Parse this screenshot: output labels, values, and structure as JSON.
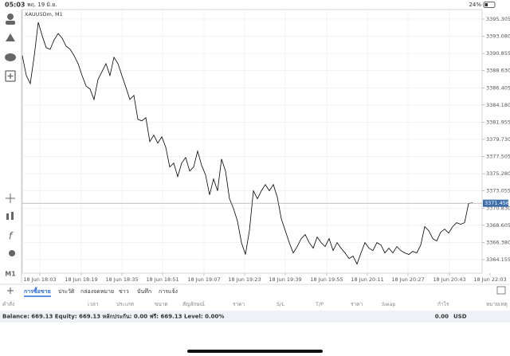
{
  "status": {
    "time": "05:03",
    "date": "พฤ. 19 มิ.ย.",
    "battery": "24%"
  },
  "toolbar": {
    "timeframe": "M1"
  },
  "chart_data": {
    "type": "line",
    "title": "XAUUSDm, M1",
    "color": "#000000",
    "values": [
      3390.57,
      3387.99,
      3386.96,
      3390.57,
      3394.89,
      3393.14,
      3391.6,
      3391.39,
      3392.63,
      3393.45,
      3392.83,
      3391.8,
      3391.39,
      3390.57,
      3389.54,
      3387.99,
      3386.65,
      3386.24,
      3384.9,
      3387.48,
      3388.51,
      3389.54,
      3387.99,
      3390.36,
      3389.54,
      3387.99,
      3386.45,
      3384.9,
      3385.42,
      3382.33,
      3382.12,
      3382.53,
      3379.44,
      3380.27,
      3379.24,
      3380.06,
      3378.72,
      3376.15,
      3376.66,
      3374.91,
      3376.66,
      3377.38,
      3375.63,
      3376.15,
      3378.21,
      3376.35,
      3375.12,
      3372.54,
      3374.6,
      3373.06,
      3377.18,
      3375.63,
      3372.03,
      3370.79,
      3369.14,
      3366.36,
      3364.82,
      3367.91,
      3373.06,
      3372.03,
      3373.06,
      3373.88,
      3373.06,
      3373.88,
      3372.23,
      3369.45,
      3367.91,
      3366.36,
      3365.02,
      3365.85,
      3366.88,
      3367.39,
      3366.36,
      3365.64,
      3367.08,
      3366.36,
      3365.85,
      3366.88,
      3365.33,
      3366.36,
      3365.64,
      3365.02,
      3364.3,
      3364.61,
      3363.58,
      3365.02,
      3366.36,
      3365.64,
      3365.33,
      3366.36,
      3366.05,
      3365.02,
      3365.64,
      3365.02,
      3365.85,
      3365.33,
      3365.02,
      3364.82,
      3365.23,
      3365.02,
      3366.05,
      3368.42,
      3367.91,
      3366.88,
      3366.57,
      3367.7,
      3368.11,
      3367.6,
      3368.42,
      3368.94,
      3368.73,
      3368.94,
      3371.41,
      3371.51
    ],
    "current_price": 3371.456,
    "xlim": [
      0,
      117.4
    ],
    "xticks": [
      {
        "value": 4.4,
        "label": "18 Jun 18:03"
      },
      {
        "value": 14.8,
        "label": "18 Jun 18:19"
      },
      {
        "value": 25,
        "label": "18 Jun 18:35"
      },
      {
        "value": 35.2,
        "label": "18 Jun 18:51"
      },
      {
        "value": 45.6,
        "label": "18 Jun 19:07"
      },
      {
        "value": 55.8,
        "label": "18 Jun 19:23"
      },
      {
        "value": 66,
        "label": "18 Jun 19:39"
      },
      {
        "value": 76.4,
        "label": "18 Jun 19:55"
      },
      {
        "value": 86.6,
        "label": "18 Jun 20:11"
      },
      {
        "value": 96.8,
        "label": "18 Jun 20:27"
      },
      {
        "value": 107.2,
        "label": "18 Jun 20:43"
      },
      {
        "value": 117.4,
        "label": "18 Jun 22:03"
      }
    ],
    "ylim": [
      3362.4,
      3396.54
    ],
    "yticks": [
      {
        "value": 3395.305,
        "label": "3395.305"
      },
      {
        "value": 3393.08,
        "label": "3393.080"
      },
      {
        "value": 3390.855,
        "label": "3390.855"
      },
      {
        "value": 3388.63,
        "label": "3388.630"
      },
      {
        "value": 3386.405,
        "label": "3386.405"
      },
      {
        "value": 3384.18,
        "label": "3384.180"
      },
      {
        "value": 3381.955,
        "label": "3381.955"
      },
      {
        "value": 3379.73,
        "label": "3379.730"
      },
      {
        "value": 3377.505,
        "label": "3377.505"
      },
      {
        "value": 3375.28,
        "label": "3375.280"
      },
      {
        "value": 3373.055,
        "label": "3373.055"
      },
      {
        "value": 3370.83,
        "label": "3370.830"
      },
      {
        "value": 3368.605,
        "label": "3368.605"
      },
      {
        "value": 3366.38,
        "label": "3366.380"
      },
      {
        "value": 3364.155,
        "label": "3364.155"
      }
    ],
    "grid": true
  },
  "tabs": [
    "การซื้อขาย",
    "ประวัติ",
    "กล่องจดหมาย",
    "ข่าว",
    "บันทึก",
    "การแจ้ง"
  ],
  "columns": [
    "คำสั่ง",
    "เวลา",
    "ประเภท",
    "ขนาด",
    "สัญลักษณ์",
    "ราคา",
    "S/L",
    "T/P",
    "ราคา",
    "Swap",
    "กำไร",
    "หมายเหตุ"
  ],
  "summary": {
    "text": "Balance: 669.13 Equity: 669.13 หลักประกัน: 0.00 ฟรี: 669.13 Level: 0.00%",
    "profit": "0.00",
    "currency": "USD"
  }
}
